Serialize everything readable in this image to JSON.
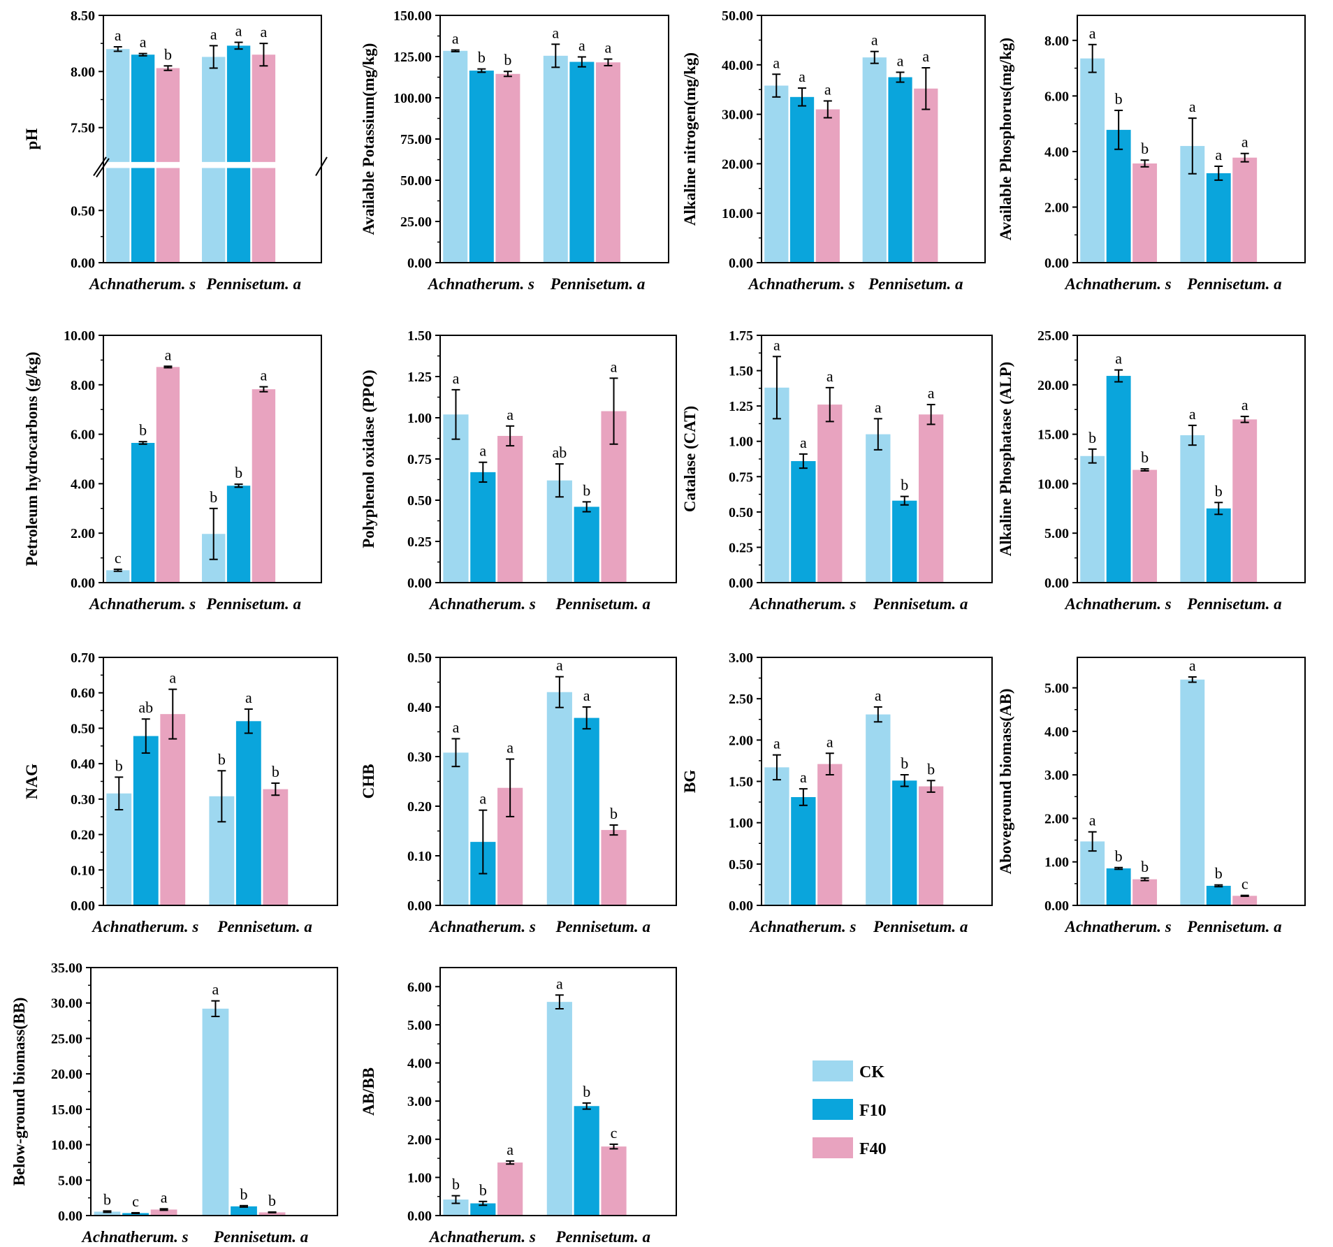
{
  "chart_data": {
    "type": "bar",
    "categories": [
      "Achnatherum. s",
      "Pennisetum. a"
    ],
    "legend": [
      {
        "name": "CK",
        "color": "#9ed8f0"
      },
      {
        "name": "F10",
        "color": "#0aa5dc"
      },
      {
        "name": "F40",
        "color": "#e8a3bf"
      }
    ],
    "panels": [
      {
        "ylabel": "pH",
        "ylim": [
          0,
          8.5
        ],
        "yticks": [
          "0.00",
          "0.50",
          "7.50",
          "8.00",
          "8.50"
        ],
        "break": [
          0.9,
          7.2
        ],
        "ytick_values": [
          0,
          0.5,
          7.5,
          8.0,
          8.5
        ],
        "series": [
          {
            "name": "CK",
            "values": [
              8.2,
              8.13
            ],
            "errors": [
              0.02,
              0.1
            ],
            "letters": [
              "a",
              "a"
            ]
          },
          {
            "name": "F10",
            "values": [
              8.15,
              8.23
            ],
            "errors": [
              0.01,
              0.03
            ],
            "letters": [
              "a",
              "a"
            ]
          },
          {
            "name": "F40",
            "values": [
              8.03,
              8.15
            ],
            "errors": [
              0.02,
              0.1
            ],
            "letters": [
              "b",
              "a"
            ]
          }
        ]
      },
      {
        "ylabel": "Available Potassium(mg/kg)",
        "ylim": [
          0,
          150
        ],
        "yticks": [
          "0.00",
          "25.00",
          "50.00",
          "75.00",
          "100.00",
          "125.00",
          "150.00"
        ],
        "ytick_values": [
          0,
          25,
          50,
          75,
          100,
          125,
          150
        ],
        "series": [
          {
            "name": "CK",
            "values": [
              128.5,
              125.5
            ],
            "errors": [
              0.5,
              7.0
            ],
            "letters": [
              "a",
              "a"
            ]
          },
          {
            "name": "F10",
            "values": [
              116.5,
              121.8
            ],
            "errors": [
              1.0,
              3.0
            ],
            "letters": [
              "b",
              "a"
            ]
          },
          {
            "name": "F40",
            "values": [
              114.5,
              121.5
            ],
            "errors": [
              1.5,
              2.0
            ],
            "letters": [
              "b",
              "a"
            ]
          }
        ]
      },
      {
        "ylabel": "Alkaline nitrogen(mg/kg)",
        "ylim": [
          0,
          50
        ],
        "yticks": [
          "0.00",
          "10.00",
          "20.00",
          "30.00",
          "40.00",
          "50.00"
        ],
        "ytick_values": [
          0,
          10,
          20,
          30,
          40,
          50
        ],
        "series": [
          {
            "name": "CK",
            "values": [
              35.8,
              41.5
            ],
            "errors": [
              2.3,
              1.2
            ],
            "letters": [
              "a",
              "a"
            ]
          },
          {
            "name": "F10",
            "values": [
              33.5,
              37.5
            ],
            "errors": [
              1.8,
              1.0
            ],
            "letters": [
              "a",
              "a"
            ]
          },
          {
            "name": "F40",
            "values": [
              31.0,
              35.2
            ],
            "errors": [
              1.7,
              4.2
            ],
            "letters": [
              "a",
              "a"
            ]
          }
        ]
      },
      {
        "ylabel": "Available Phosphorus(mg/kg)",
        "ylim": [
          0,
          8.9
        ],
        "yticks": [
          "0.00",
          "2.00",
          "4.00",
          "6.00",
          "8.00"
        ],
        "ytick_values": [
          0,
          2,
          4,
          6,
          8
        ],
        "series": [
          {
            "name": "CK",
            "values": [
              7.35,
              4.2
            ],
            "errors": [
              0.5,
              1.0
            ],
            "letters": [
              "a",
              "a"
            ]
          },
          {
            "name": "F10",
            "values": [
              4.78,
              3.22
            ],
            "errors": [
              0.7,
              0.25
            ],
            "letters": [
              "b",
              "a"
            ]
          },
          {
            "name": "F40",
            "values": [
              3.57,
              3.78
            ],
            "errors": [
              0.12,
              0.15
            ],
            "letters": [
              "b",
              "a"
            ]
          }
        ]
      },
      {
        "ylabel": "Petroleum hydrocarbons (g/kg)",
        "ylim": [
          0,
          10
        ],
        "yticks": [
          "0.00",
          "2.00",
          "4.00",
          "6.00",
          "8.00",
          "10.00"
        ],
        "ytick_values": [
          0,
          2,
          4,
          6,
          8,
          10
        ],
        "series": [
          {
            "name": "CK",
            "values": [
              0.5,
              1.97
            ],
            "errors": [
              0.04,
              1.03
            ],
            "letters": [
              "c",
              "b"
            ]
          },
          {
            "name": "F10",
            "values": [
              5.65,
              3.92
            ],
            "errors": [
              0.05,
              0.06
            ],
            "letters": [
              "b",
              "b"
            ]
          },
          {
            "name": "F40",
            "values": [
              8.72,
              7.82
            ],
            "errors": [
              0.03,
              0.1
            ],
            "letters": [
              "a",
              "a"
            ]
          }
        ]
      },
      {
        "ylabel": "Polyphenol oxidase (PPO)",
        "ylim": [
          0,
          1.5
        ],
        "yticks": [
          "0.00",
          "0.25",
          "0.50",
          "0.75",
          "1.00",
          "1.25",
          "1.50"
        ],
        "ytick_values": [
          0,
          0.25,
          0.5,
          0.75,
          1.0,
          1.25,
          1.5
        ],
        "series": [
          {
            "name": "CK",
            "values": [
              1.02,
              0.62
            ],
            "errors": [
              0.15,
              0.1
            ],
            "letters": [
              "a",
              "ab"
            ]
          },
          {
            "name": "F10",
            "values": [
              0.67,
              0.46
            ],
            "errors": [
              0.06,
              0.03
            ],
            "letters": [
              "a",
              "b"
            ]
          },
          {
            "name": "F40",
            "values": [
              0.89,
              1.04
            ],
            "errors": [
              0.06,
              0.2
            ],
            "letters": [
              "a",
              "a"
            ]
          }
        ]
      },
      {
        "ylabel": "Catalase (CAT)",
        "ylim": [
          0,
          1.75
        ],
        "yticks": [
          "0.00",
          "0.25",
          "0.50",
          "0.75",
          "1.00",
          "1.25",
          "1.50",
          "1.75"
        ],
        "ytick_values": [
          0,
          0.25,
          0.5,
          0.75,
          1.0,
          1.25,
          1.5,
          1.75
        ],
        "series": [
          {
            "name": "CK",
            "values": [
              1.38,
              1.05
            ],
            "errors": [
              0.22,
              0.11
            ],
            "letters": [
              "a",
              "a"
            ]
          },
          {
            "name": "F10",
            "values": [
              0.86,
              0.58
            ],
            "errors": [
              0.05,
              0.03
            ],
            "letters": [
              "a",
              "b"
            ]
          },
          {
            "name": "F40",
            "values": [
              1.26,
              1.19
            ],
            "errors": [
              0.12,
              0.07
            ],
            "letters": [
              "a",
              "a"
            ]
          }
        ]
      },
      {
        "ylabel": "Alkaline Phosphatase (ALP)",
        "ylim": [
          0,
          25
        ],
        "yticks": [
          "0.00",
          "5.00",
          "10.00",
          "15.00",
          "20.00",
          "25.00"
        ],
        "ytick_values": [
          0,
          5,
          10,
          15,
          20,
          25
        ],
        "series": [
          {
            "name": "CK",
            "values": [
              12.8,
              14.9
            ],
            "errors": [
              0.7,
              1.0
            ],
            "letters": [
              "b",
              "a"
            ]
          },
          {
            "name": "F10",
            "values": [
              20.9,
              7.5
            ],
            "errors": [
              0.6,
              0.6
            ],
            "letters": [
              "a",
              "b"
            ]
          },
          {
            "name": "F40",
            "values": [
              11.4,
              16.5
            ],
            "errors": [
              0.1,
              0.3
            ],
            "letters": [
              "b",
              "a"
            ]
          }
        ]
      },
      {
        "ylabel": "NAG",
        "ylim": [
          0,
          0.7
        ],
        "yticks": [
          "0.00",
          "0.10",
          "0.20",
          "0.30",
          "0.40",
          "0.50",
          "0.60",
          "0.70"
        ],
        "ytick_values": [
          0,
          0.1,
          0.2,
          0.3,
          0.4,
          0.5,
          0.6,
          0.7
        ],
        "series": [
          {
            "name": "CK",
            "values": [
              0.316,
              0.308
            ],
            "errors": [
              0.046,
              0.072
            ],
            "letters": [
              "b",
              "b"
            ]
          },
          {
            "name": "F10",
            "values": [
              0.478,
              0.52
            ],
            "errors": [
              0.048,
              0.034
            ],
            "letters": [
              "ab",
              "a"
            ]
          },
          {
            "name": "F40",
            "values": [
              0.54,
              0.328
            ],
            "errors": [
              0.07,
              0.017
            ],
            "letters": [
              "a",
              "b"
            ]
          }
        ]
      },
      {
        "ylabel": "CHB",
        "ylim": [
          0,
          0.5
        ],
        "yticks": [
          "0.00",
          "0.10",
          "0.20",
          "0.30",
          "0.40",
          "0.50"
        ],
        "ytick_values": [
          0,
          0.1,
          0.2,
          0.3,
          0.4,
          0.5
        ],
        "series": [
          {
            "name": "CK",
            "values": [
              0.308,
              0.43
            ],
            "errors": [
              0.028,
              0.031
            ],
            "letters": [
              "a",
              "a"
            ]
          },
          {
            "name": "F10",
            "values": [
              0.128,
              0.378
            ],
            "errors": [
              0.064,
              0.022
            ],
            "letters": [
              "a",
              "a"
            ]
          },
          {
            "name": "F40",
            "values": [
              0.237,
              0.152
            ],
            "errors": [
              0.058,
              0.01
            ],
            "letters": [
              "a",
              "b"
            ]
          }
        ]
      },
      {
        "ylabel": "BG",
        "ylim": [
          0,
          3.0
        ],
        "yticks": [
          "0.00",
          "0.50",
          "1.00",
          "1.50",
          "2.00",
          "2.50",
          "3.00"
        ],
        "ytick_values": [
          0,
          0.5,
          1.0,
          1.5,
          2.0,
          2.5,
          3.0
        ],
        "series": [
          {
            "name": "CK",
            "values": [
              1.67,
              2.31
            ],
            "errors": [
              0.15,
              0.09
            ],
            "letters": [
              "a",
              "a"
            ]
          },
          {
            "name": "F10",
            "values": [
              1.31,
              1.51
            ],
            "errors": [
              0.1,
              0.07
            ],
            "letters": [
              "a",
              "b"
            ]
          },
          {
            "name": "F40",
            "values": [
              1.71,
              1.44
            ],
            "errors": [
              0.13,
              0.07
            ],
            "letters": [
              "a",
              "b"
            ]
          }
        ]
      },
      {
        "ylabel": "Aboveground biomass(AB)",
        "ylim": [
          0,
          5.7
        ],
        "yticks": [
          "0.00",
          "1.00",
          "2.00",
          "3.00",
          "4.00",
          "5.00"
        ],
        "ytick_values": [
          0,
          1,
          2,
          3,
          4,
          5
        ],
        "series": [
          {
            "name": "CK",
            "values": [
              1.47,
              5.19
            ],
            "errors": [
              0.22,
              0.06
            ],
            "letters": [
              "a",
              "a"
            ]
          },
          {
            "name": "F10",
            "values": [
              0.85,
              0.45
            ],
            "errors": [
              0.02,
              0.02
            ],
            "letters": [
              "b",
              "b"
            ]
          },
          {
            "name": "F40",
            "values": [
              0.6,
              0.22
            ],
            "errors": [
              0.03,
              0.01
            ],
            "letters": [
              "b",
              "c"
            ]
          }
        ]
      },
      {
        "ylabel": "Below-ground biomass(BB)",
        "ylim": [
          0,
          35
        ],
        "yticks": [
          "0.00",
          "5.00",
          "10.00",
          "15.00",
          "20.00",
          "25.00",
          "30.00",
          "35.00"
        ],
        "ytick_values": [
          0,
          5,
          10,
          15,
          20,
          25,
          30,
          35
        ],
        "series": [
          {
            "name": "CK",
            "values": [
              0.55,
              29.2
            ],
            "errors": [
              0.1,
              1.1
            ],
            "letters": [
              "b",
              "a"
            ]
          },
          {
            "name": "F10",
            "values": [
              0.35,
              1.3
            ],
            "errors": [
              0.05,
              0.1
            ],
            "letters": [
              "c",
              "b"
            ]
          },
          {
            "name": "F40",
            "values": [
              0.85,
              0.45
            ],
            "errors": [
              0.1,
              0.05
            ],
            "letters": [
              "a",
              "b"
            ]
          }
        ]
      },
      {
        "ylabel": "AB/BB",
        "ylim": [
          0,
          6.5
        ],
        "yticks": [
          "0.00",
          "1.00",
          "2.00",
          "3.00",
          "4.00",
          "5.00",
          "6.00"
        ],
        "ytick_values": [
          0,
          1,
          2,
          3,
          4,
          5,
          6
        ],
        "series": [
          {
            "name": "CK",
            "values": [
              0.42,
              5.6
            ],
            "errors": [
              0.1,
              0.18
            ],
            "letters": [
              "b",
              "a"
            ]
          },
          {
            "name": "F10",
            "values": [
              0.32,
              2.87
            ],
            "errors": [
              0.05,
              0.08
            ],
            "letters": [
              "b",
              "b"
            ]
          },
          {
            "name": "F40",
            "values": [
              1.39,
              1.81
            ],
            "errors": [
              0.04,
              0.06
            ],
            "letters": [
              "a",
              "c"
            ]
          }
        ]
      }
    ]
  }
}
